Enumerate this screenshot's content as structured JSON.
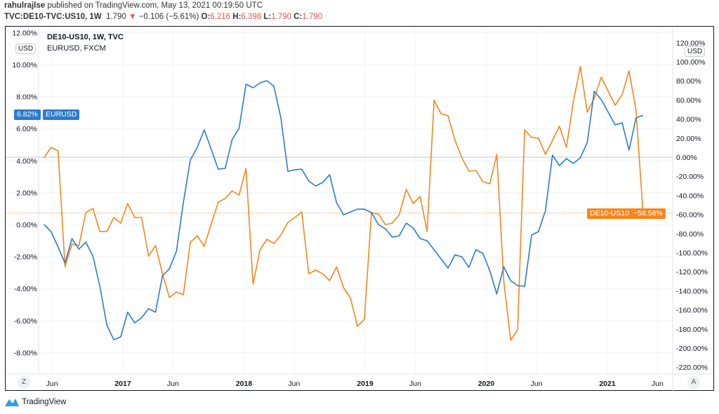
{
  "header": {
    "author": "rahulrajlse",
    "published": "published on TradingView.com, May 13, 2021 00:19:50 UTC",
    "symbol": "TVC:DE10-TVC:US10, 1W",
    "last": "1.790",
    "change": "−0.106 (−5.61%)",
    "o_label": "O:",
    "o": "6.216",
    "h_label": "H:",
    "h": "6.398",
    "l_label": "L:",
    "l": "1.790",
    "c_label": "C:",
    "c": "1.790"
  },
  "legend": {
    "main": "DE10-US10, 1W, TVC",
    "compare": "EURUSD, FXCM"
  },
  "currency_left": "USD",
  "currency_right": "USD",
  "zoom_button": "Z",
  "auto_button": "A",
  "branding": "TradingView",
  "colors": {
    "eurusd": "#2a7bd3",
    "de10us10": "#f7861c",
    "down": "#ef5350"
  },
  "chart_data": {
    "type": "line",
    "interval": "3 weeks",
    "start": "2016-05-08",
    "x_ticks": [
      {
        "label": "Jun",
        "date": "2016-06-01"
      },
      {
        "label": "2017",
        "date": "2017-01-01"
      },
      {
        "label": "Jun",
        "date": "2017-06-01"
      },
      {
        "label": "2018",
        "date": "2018-01-01"
      },
      {
        "label": "Jun",
        "date": "2018-06-01"
      },
      {
        "label": "2019",
        "date": "2019-01-01"
      },
      {
        "label": "Jun",
        "date": "2019-06-01"
      },
      {
        "label": "2020",
        "date": "2020-01-01"
      },
      {
        "label": "Jun",
        "date": "2020-06-01"
      },
      {
        "label": "2021",
        "date": "2021-01-01"
      },
      {
        "label": "Jun",
        "date": "2021-06-01"
      }
    ],
    "left_axis": {
      "ticks": [
        "12.00%",
        "10.00%",
        "8.00%",
        "6.00%",
        "4.00%",
        "2.00%",
        "0.00%",
        "-2.00%",
        "-4.00%",
        "-6.00%",
        "-8.00%"
      ],
      "values": [
        12,
        10,
        8,
        6,
        4,
        2,
        0,
        -2,
        -4,
        -6,
        -8
      ]
    },
    "right_axis": {
      "ticks": [
        "120.00%",
        "100.00%",
        "80.00%",
        "60.00%",
        "40.00%",
        "20.00%",
        "0.00%",
        "-20.00%",
        "-40.00%",
        "-60.00%",
        "-80.00%",
        "-100.00%",
        "-120.00%",
        "-140.00%",
        "-160.00%",
        "-180.00%",
        "-200.00%",
        "-220.00%"
      ],
      "values": [
        120,
        100,
        80,
        60,
        40,
        20,
        0,
        -20,
        -40,
        -60,
        -80,
        -100,
        -120,
        -140,
        -160,
        -180,
        -200,
        -220
      ]
    },
    "series": [
      {
        "name": "EURUSD",
        "axis": "left",
        "last_label": "6.82%",
        "values": [
          0,
          -0.44,
          -1.4,
          -2.41,
          -0.88,
          -1.54,
          -1.1,
          -1.97,
          -3.86,
          -6.27,
          -7.2,
          -7.02,
          -5.48,
          -6.14,
          -5.83,
          -5.26,
          -5.48,
          -3.2,
          -2.76,
          -1.67,
          1.4,
          4.04,
          4.82,
          5.92,
          4.69,
          3.46,
          3.51,
          5.31,
          6.01,
          8.77,
          8.55,
          8.86,
          8.99,
          8.64,
          6.67,
          3.33,
          3.42,
          3.46,
          2.72,
          2.41,
          2.63,
          3.11,
          1.36,
          0.61,
          0.79,
          0.96,
          0.96,
          0.75,
          0,
          -0.26,
          -0.79,
          -0.7,
          0.09,
          -0.22,
          -0.88,
          -1.01,
          -1.58,
          -2.15,
          -2.72,
          -1.89,
          -2.02,
          -2.68,
          -1.58,
          -1.8,
          -2.89,
          -4.34,
          -2.63,
          -3.51,
          -3.82,
          -3.86,
          -0.66,
          -0.44,
          0.88,
          4.34,
          3.68,
          4.12,
          3.82,
          4.17,
          5.13,
          8.33,
          7.81,
          7.02,
          6.23,
          6.36,
          4.65,
          6.67,
          6.82
        ]
      },
      {
        "name": "DE10-US10",
        "axis": "right",
        "last_label": "−58.58%",
        "values": [
          -0.7,
          10.3,
          6.6,
          -114.7,
          -91.2,
          -92.6,
          -58.1,
          -53.7,
          -77.9,
          -77.9,
          -63.2,
          -69.1,
          -48.5,
          -63.2,
          -63.2,
          -103.7,
          -92.6,
          -122.1,
          -147.1,
          -141.2,
          -144.1,
          -89,
          -82.4,
          -93.4,
          -69.9,
          -47.1,
          -43.4,
          -35.3,
          -39.7,
          -11.8,
          -133.1,
          -97.1,
          -86,
          -90.4,
          -81.6,
          -68.4,
          -63.2,
          -57.4,
          -122.1,
          -118.4,
          -122.1,
          -129.4,
          -114.7,
          -136.8,
          -147.8,
          -177.2,
          -169.9,
          -58.1,
          -59.6,
          -70.6,
          -69.1,
          -60.3,
          -33.8,
          -48.5,
          -41.2,
          -77.9,
          59.6,
          45.6,
          43.4,
          17.6,
          -0.7,
          -14.7,
          -14,
          -25.7,
          -27.9,
          2.9,
          -129.4,
          -191.9,
          -180.9,
          28.7,
          20.6,
          19.9,
          2.9,
          17.6,
          32.4,
          10.3,
          58.1,
          95,
          47.1,
          61.8,
          83.8,
          69.1,
          54.4,
          65.4,
          90.4,
          49.3,
          -58.58
        ]
      }
    ]
  }
}
